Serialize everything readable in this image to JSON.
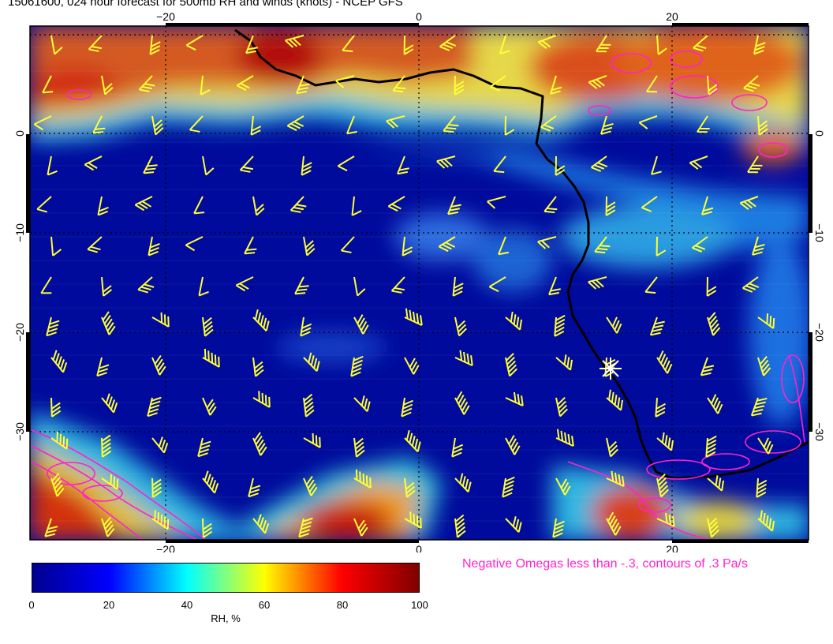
{
  "title": "15061600, 024 hour forecast for 500mb RH and winds (knots) - NCEP GFS",
  "map": {
    "lon_ticks_top": [
      "−20",
      "0",
      "20"
    ],
    "lon_ticks_bottom": [
      "−20",
      "0",
      "20"
    ],
    "lat_ticks_left": [
      "0",
      "−10",
      "−20",
      "−30"
    ],
    "lat_ticks_right": [
      "0",
      "−10",
      "−20",
      "−30"
    ],
    "colors": {
      "barb": "#ffff33",
      "omega_contour": "#ff22cc",
      "coastline": "#000000",
      "marker": "#ffffff"
    }
  },
  "colorbar": {
    "ticks": [
      "0",
      "20",
      "40",
      "60",
      "80",
      "100"
    ],
    "label": "RH, %",
    "colors": [
      "#00008f",
      "#0000ff",
      "#00ffff",
      "#ffff00",
      "#ff0000",
      "#800000"
    ]
  },
  "omega_note": "Negative Omegas less than -.3, contours of .3 Pa/s"
}
